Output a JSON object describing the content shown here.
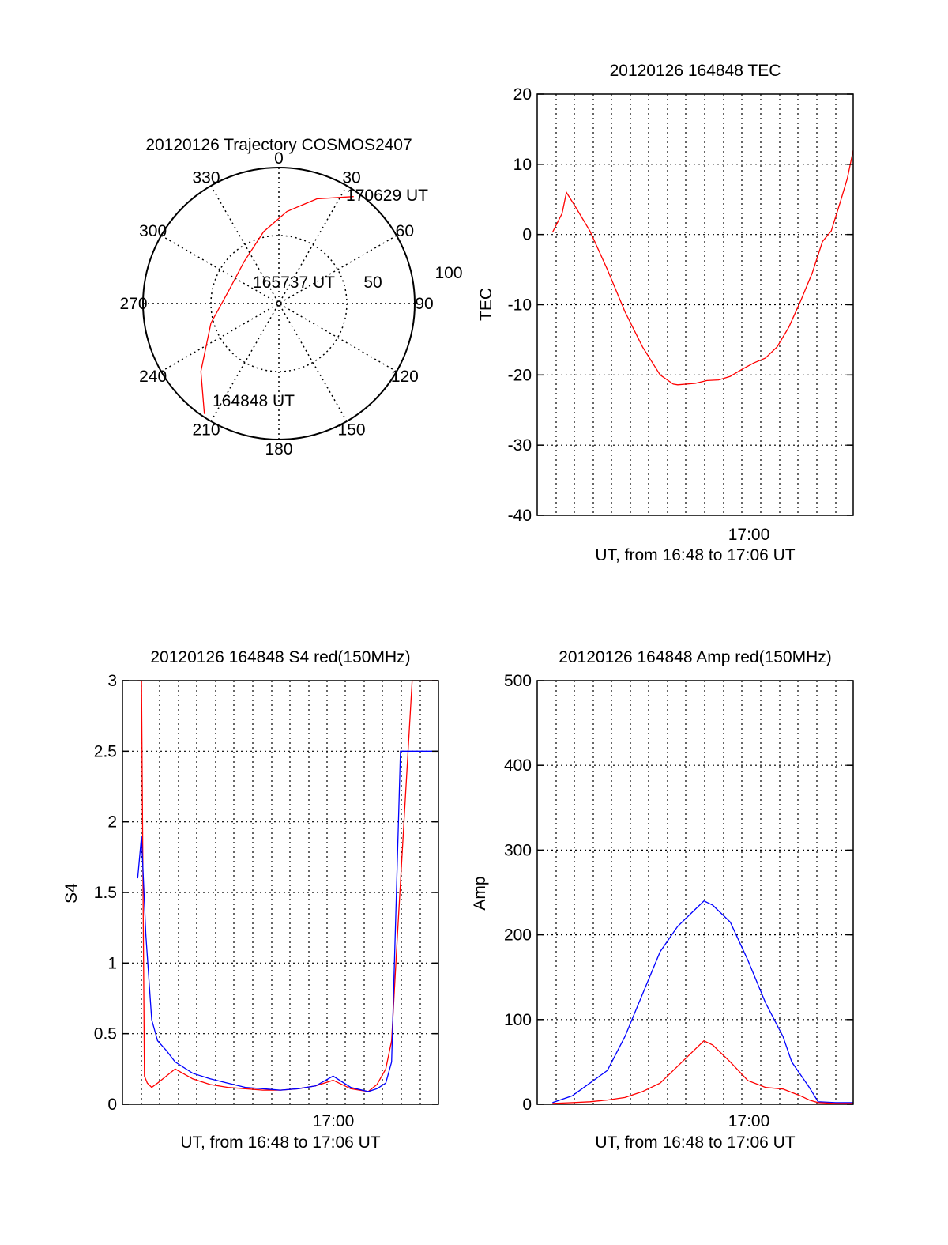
{
  "chart_data": [
    {
      "type": "polar-trajectory",
      "title": "20120126 Trajectory COSMOS2407",
      "angle_labels": [
        "0",
        "30",
        "60",
        "90",
        "120",
        "150",
        "180",
        "210",
        "240",
        "270",
        "300",
        "330"
      ],
      "radial_labels": [
        "50",
        "100"
      ],
      "trajectory": {
        "color": "#ff0000",
        "points": [
          {
            "azimuth": 214,
            "radius": 98
          },
          {
            "azimuth": 229,
            "radius": 76
          },
          {
            "azimuth": 254,
            "radius": 52
          },
          {
            "azimuth": 285,
            "radius": 38
          },
          {
            "azimuth": 320,
            "radius": 40
          },
          {
            "azimuth": 348,
            "radius": 54
          },
          {
            "azimuth": 5,
            "radius": 68
          },
          {
            "azimuth": 20,
            "radius": 82
          },
          {
            "azimuth": 35,
            "radius": 96
          }
        ],
        "labels": [
          "164848 UT",
          "165737 UT",
          "170629 UT"
        ]
      }
    },
    {
      "type": "line",
      "title": "20120126 164848 TEC",
      "xlabel": "UT, from 16:48 to 17:06 UT",
      "ylabel": "TEC",
      "xlim": [
        "16:48",
        "17:06"
      ],
      "ylim": [
        -40,
        20
      ],
      "x_tick_labels": [
        "17:00"
      ],
      "y_tick_labels": [
        "-40",
        "-30",
        "-20",
        "-10",
        "0",
        "10",
        "20"
      ],
      "grid": true,
      "series": [
        {
          "color": "#ff0000",
          "x": [
            "16:48:52",
            "16:49:25",
            "16:49:40",
            "16:50:10",
            "16:51:00",
            "16:52:00",
            "16:53:00",
            "16:54:00",
            "16:55:00",
            "16:55:45",
            "16:56:00",
            "16:57:00",
            "16:57:40",
            "16:58:20",
            "16:59:00",
            "16:59:40",
            "17:00:20",
            "17:01:00",
            "17:01:40",
            "17:02:20",
            "17:03:00",
            "17:03:40",
            "17:04:15",
            "17:04:45",
            "17:05:15",
            "17:05:40",
            "17:06:00"
          ],
          "values": [
            0.3,
            3,
            6,
            4,
            0.5,
            -5,
            -11,
            -16,
            -20,
            -21.3,
            -21.4,
            -21.2,
            -20.8,
            -20.7,
            -20.2,
            -19.2,
            -18.3,
            -17.6,
            -16,
            -13.2,
            -9.5,
            -5.5,
            -1,
            0.5,
            4.5,
            8,
            12
          ]
        }
      ]
    },
    {
      "type": "line",
      "title": "20120126 164848 S4 red(150MHz)",
      "xlabel": "UT, from 16:48 to 17:06 UT",
      "ylabel": "S4",
      "xlim": [
        "16:48",
        "17:06"
      ],
      "ylim": [
        0,
        3
      ],
      "x_tick_labels": [
        "17:00"
      ],
      "y_tick_labels": [
        "0",
        "0.5",
        "1",
        "1.5",
        "2",
        "2.5",
        "3"
      ],
      "grid": true,
      "series": [
        {
          "color": "#ff0000",
          "x": [
            "16:48:52",
            "16:49:05",
            "16:49:15",
            "16:49:25",
            "16:49:40",
            "16:50:00",
            "16:51:00",
            "16:52:00",
            "16:53:00",
            "16:54:00",
            "16:55:00",
            "16:56:00",
            "16:57:00",
            "16:58:00",
            "16:59:00",
            "17:00:00",
            "17:01:00",
            "17:02:00",
            "17:02:30",
            "17:03:00",
            "17:03:20",
            "17:03:40",
            "17:04:30",
            "17:05:30",
            "17:06:00"
          ],
          "values": [
            3.0,
            3.0,
            0.2,
            0.15,
            0.12,
            0.15,
            0.25,
            0.18,
            0.14,
            0.12,
            0.11,
            0.1,
            0.1,
            0.11,
            0.13,
            0.17,
            0.11,
            0.09,
            0.14,
            0.25,
            0.45,
            1.2,
            3.0,
            3.0,
            3.0
          ]
        },
        {
          "color": "#0000ff",
          "x": [
            "16:48:52",
            "16:49:05",
            "16:49:20",
            "16:49:40",
            "16:50:00",
            "16:50:30",
            "16:51:00",
            "16:52:00",
            "16:53:00",
            "16:54:00",
            "16:55:00",
            "16:56:00",
            "16:57:00",
            "16:58:00",
            "16:59:00",
            "17:00:00",
            "17:01:00",
            "17:02:00",
            "17:02:30",
            "17:03:00",
            "17:03:20",
            "17:03:50",
            "17:04:30",
            "17:05:30",
            "17:06:00"
          ],
          "values": [
            1.6,
            1.9,
            1.2,
            0.6,
            0.45,
            0.38,
            0.3,
            0.22,
            0.18,
            0.15,
            0.12,
            0.11,
            0.1,
            0.11,
            0.13,
            0.2,
            0.12,
            0.09,
            0.11,
            0.15,
            0.3,
            2.5,
            2.5,
            2.5,
            2.5
          ]
        }
      ]
    },
    {
      "type": "line",
      "title": "20120126 164848 Amp red(150MHz)",
      "xlabel": "UT, from 16:48 to 17:06 UT",
      "ylabel": "Amp",
      "xlim": [
        "16:48",
        "17:06"
      ],
      "ylim": [
        0,
        500
      ],
      "x_tick_labels": [
        "17:00"
      ],
      "y_tick_labels": [
        "0",
        "100",
        "200",
        "300",
        "400",
        "500"
      ],
      "grid": true,
      "series": [
        {
          "color": "#0000ff",
          "x": [
            "16:48:52",
            "16:50:00",
            "16:51:00",
            "16:52:00",
            "16:53:00",
            "16:54:00",
            "16:55:00",
            "16:56:00",
            "16:57:00",
            "16:57:30",
            "16:58:00",
            "16:59:00",
            "17:00:00",
            "17:01:00",
            "17:02:00",
            "17:02:30",
            "17:03:00",
            "17:03:30",
            "17:04:00",
            "17:05:00",
            "17:06:00"
          ],
          "values": [
            2,
            10,
            25,
            40,
            80,
            130,
            180,
            210,
            230,
            240,
            235,
            215,
            170,
            120,
            80,
            50,
            35,
            20,
            3,
            2,
            2
          ]
        },
        {
          "color": "#ff0000",
          "x": [
            "16:48:52",
            "16:50:00",
            "16:51:00",
            "16:52:00",
            "16:53:00",
            "16:54:00",
            "16:55:00",
            "16:56:00",
            "16:57:00",
            "16:57:30",
            "16:58:00",
            "16:59:00",
            "17:00:00",
            "17:01:00",
            "17:02:00",
            "17:02:30",
            "17:03:00",
            "17:03:30",
            "17:04:00",
            "17:05:00",
            "17:06:00"
          ],
          "values": [
            1,
            2,
            3,
            5,
            8,
            15,
            25,
            45,
            65,
            75,
            70,
            50,
            28,
            20,
            18,
            14,
            10,
            5,
            2,
            1,
            1
          ]
        }
      ]
    }
  ]
}
